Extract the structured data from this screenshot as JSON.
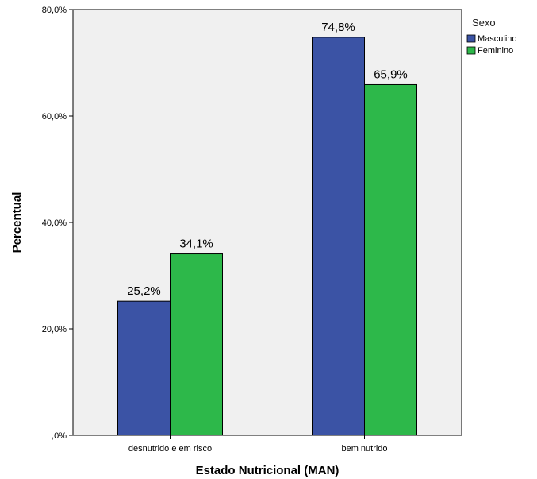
{
  "chart_data": {
    "type": "bar",
    "categories": [
      "desnutrido e em risco",
      "bem nutrido"
    ],
    "series": [
      {
        "name": "Masculino",
        "values": [
          25.2,
          74.8
        ],
        "color": "#3b53a5"
      },
      {
        "name": "Feminino",
        "values": [
          34.1,
          65.9
        ],
        "color": "#2db84a"
      }
    ],
    "data_labels": [
      [
        "25,2%",
        "74,8%"
      ],
      [
        "34,1%",
        "65,9%"
      ]
    ],
    "xlabel": "Estado Nutricional (MAN)",
    "ylabel": "Percentual",
    "ylim": [
      0,
      80
    ],
    "yticks": [
      0,
      20,
      40,
      60,
      80
    ],
    "ytick_labels": [
      ",0%",
      "20,0%",
      "40,0%",
      "60,0%",
      "80,0%"
    ],
    "legend_title": "Sexo",
    "legend_position": "top-right",
    "plot_background": "#f0f0f0",
    "grid": false
  }
}
